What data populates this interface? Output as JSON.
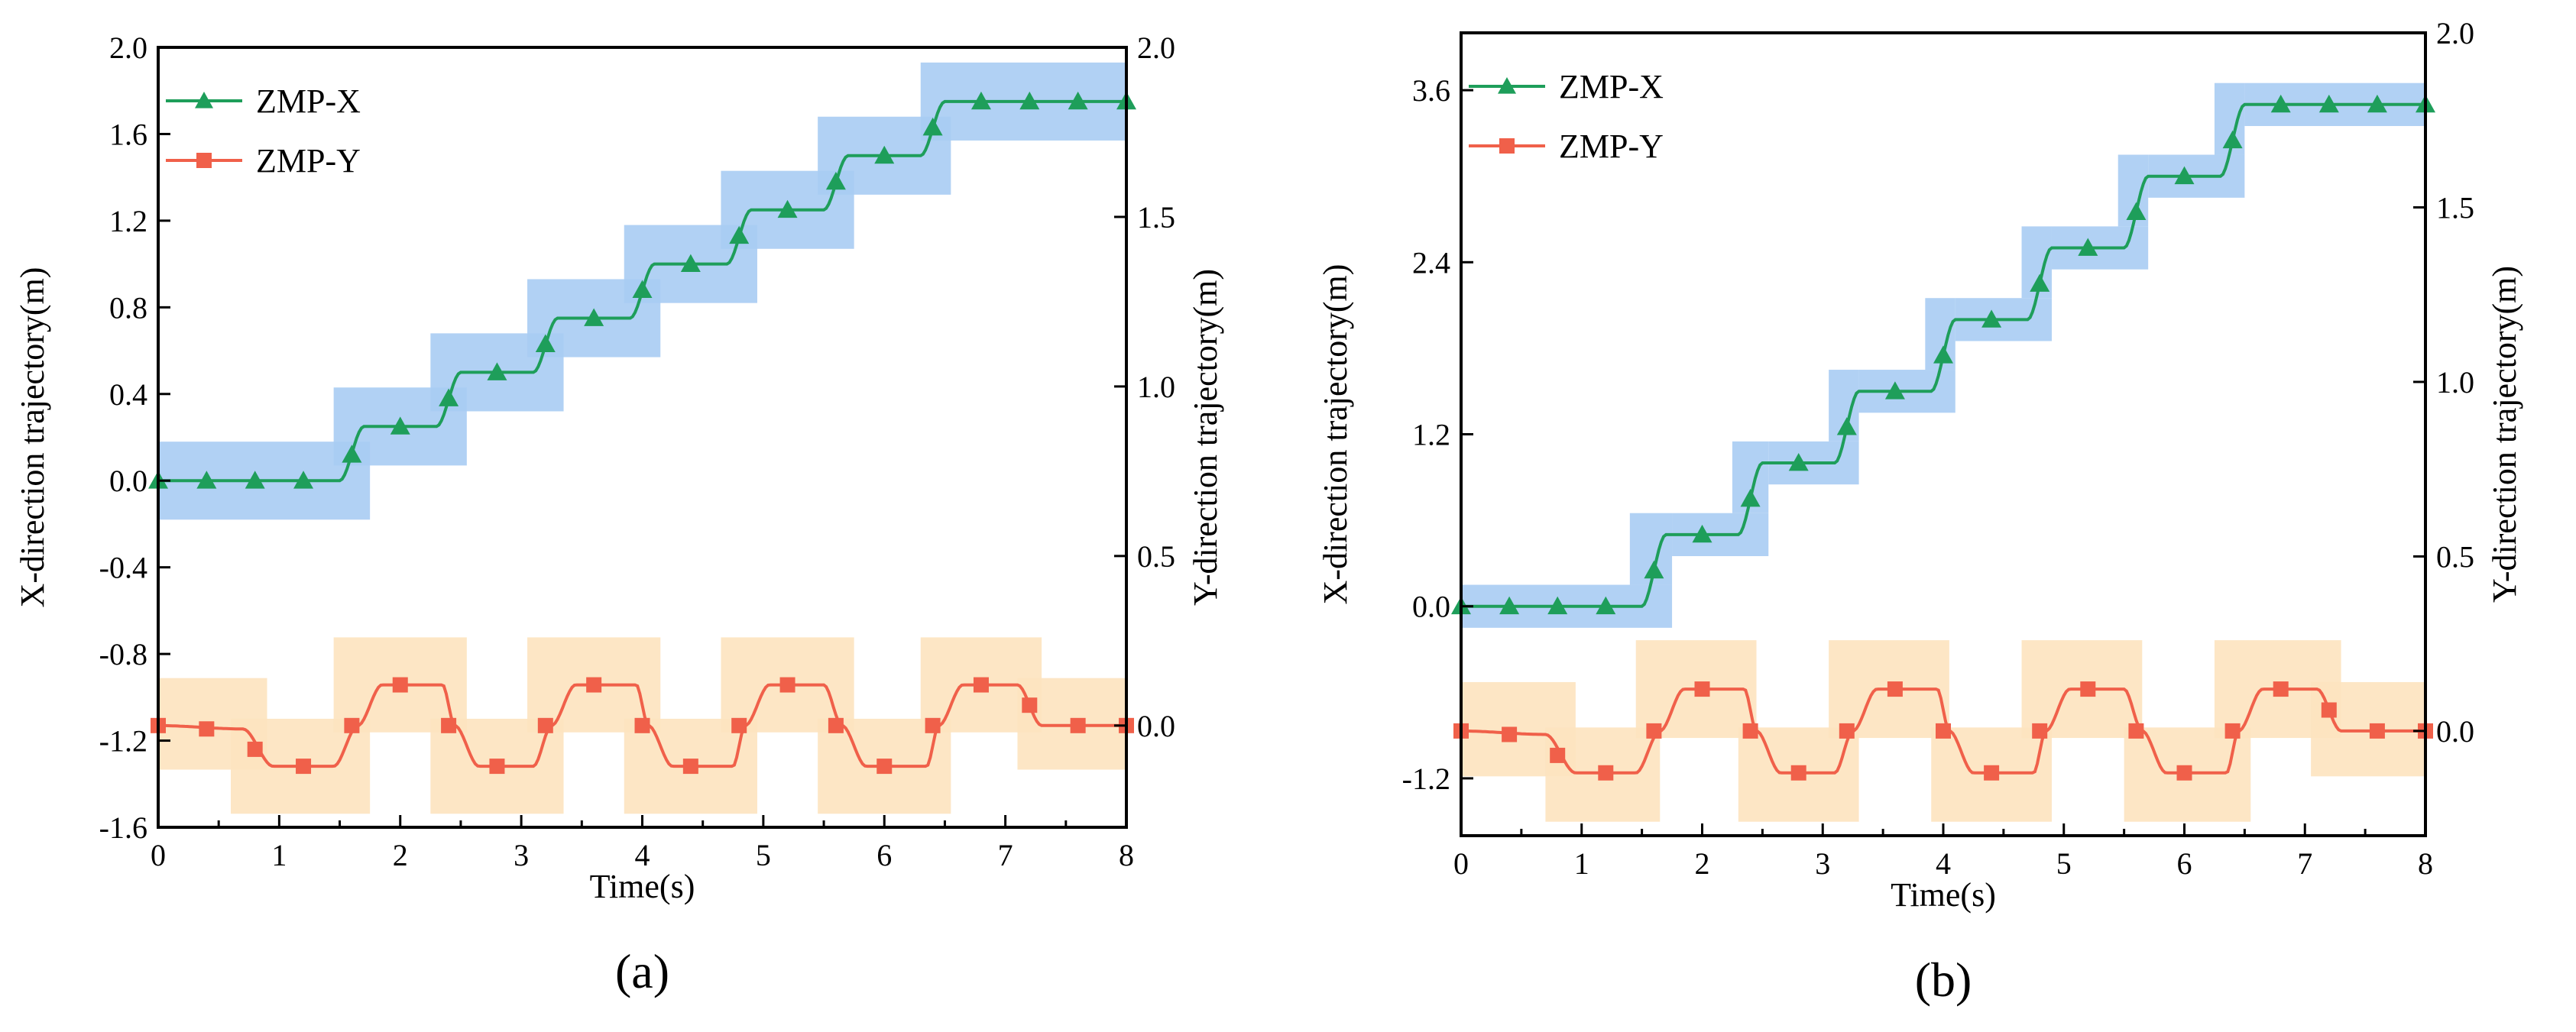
{
  "chart_data": [
    {
      "type": "line",
      "panel_label": "(a)",
      "xlabel": "Time(s)",
      "ylabel_left": "X-direction trajectory(m)",
      "ylabel_right": "Y-direction trajectory(m)",
      "xlim": [
        0,
        8
      ],
      "ylim_left": [
        -1.6,
        2.0
      ],
      "ylim_right": [
        -0.3,
        2.0
      ],
      "x_ticks": [
        "0",
        "1",
        "2",
        "3",
        "4",
        "5",
        "6",
        "7",
        "8"
      ],
      "y_left_ticks": [
        "-1.6",
        "-1.2",
        "-0.8",
        "-0.4",
        "0.0",
        "0.4",
        "0.8",
        "1.2",
        "1.6",
        "2.0"
      ],
      "y_right_ticks": [
        "0.0",
        "0.5",
        "1.0",
        "1.5",
        "2.0"
      ],
      "legend_position": "top-left",
      "legend": [
        "ZMP-X",
        "ZMP-Y"
      ],
      "series": [
        {
          "name": "ZMP-X",
          "axis": "left",
          "color": "#1e9e5a",
          "marker": "triangle",
          "x": [
            0,
            0.4,
            0.8,
            1.2,
            1.6,
            2.0,
            2.4,
            2.8,
            3.2,
            3.6,
            4.0,
            4.4,
            4.8,
            5.2,
            5.6,
            6.0,
            6.4,
            6.8,
            7.2,
            7.6,
            8.0
          ],
          "values": [
            0.0,
            0.0,
            0.0,
            0.0,
            0.12,
            0.25,
            0.38,
            0.5,
            0.63,
            0.75,
            0.88,
            1.0,
            1.13,
            1.25,
            1.38,
            1.5,
            1.63,
            1.75,
            1.75,
            1.75,
            1.75
          ]
        },
        {
          "name": "ZMP-Y",
          "axis": "right",
          "color": "#f0604a",
          "marker": "square",
          "x": [
            0,
            0.4,
            0.8,
            1.2,
            1.6,
            2.0,
            2.4,
            2.8,
            3.2,
            3.6,
            4.0,
            4.4,
            4.8,
            5.2,
            5.6,
            6.0,
            6.4,
            6.8,
            7.2,
            7.6,
            8.0
          ],
          "values": [
            0.0,
            -0.01,
            -0.07,
            -0.12,
            0.0,
            0.12,
            0.0,
            -0.12,
            0.0,
            0.12,
            0.0,
            -0.12,
            0.0,
            0.12,
            0.0,
            -0.12,
            0.0,
            0.12,
            0.06,
            0.0,
            0.0
          ]
        }
      ],
      "x_support_regions": [
        {
          "t0": 0.0,
          "t1": 1.75,
          "y0": -0.18,
          "y1": 0.18
        },
        {
          "t0": 1.45,
          "t1": 2.55,
          "y0": 0.07,
          "y1": 0.43
        },
        {
          "t0": 2.25,
          "t1": 3.35,
          "y0": 0.32,
          "y1": 0.68
        },
        {
          "t0": 3.05,
          "t1": 4.15,
          "y0": 0.57,
          "y1": 0.93
        },
        {
          "t0": 3.85,
          "t1": 4.95,
          "y0": 0.82,
          "y1": 1.18
        },
        {
          "t0": 4.65,
          "t1": 5.75,
          "y0": 1.07,
          "y1": 1.43
        },
        {
          "t0": 5.45,
          "t1": 6.55,
          "y0": 1.32,
          "y1": 1.68
        },
        {
          "t0": 6.3,
          "t1": 8.0,
          "y0": 1.57,
          "y1": 1.93
        }
      ],
      "y_support_regions": [
        {
          "t0": 0.0,
          "t1": 0.9,
          "y0": -0.13,
          "y1": 0.14
        },
        {
          "t0": 0.6,
          "t1": 1.75,
          "y0": -0.26,
          "y1": 0.02
        },
        {
          "t0": 1.45,
          "t1": 2.55,
          "y0": -0.02,
          "y1": 0.26
        },
        {
          "t0": 2.25,
          "t1": 3.35,
          "y0": -0.26,
          "y1": 0.02
        },
        {
          "t0": 3.05,
          "t1": 4.15,
          "y0": -0.02,
          "y1": 0.26
        },
        {
          "t0": 3.85,
          "t1": 4.95,
          "y0": -0.26,
          "y1": 0.02
        },
        {
          "t0": 4.65,
          "t1": 5.75,
          "y0": -0.02,
          "y1": 0.26
        },
        {
          "t0": 5.45,
          "t1": 6.55,
          "y0": -0.26,
          "y1": 0.02
        },
        {
          "t0": 6.3,
          "t1": 7.3,
          "y0": -0.02,
          "y1": 0.26
        },
        {
          "t0": 7.1,
          "t1": 8.0,
          "y0": -0.13,
          "y1": 0.14
        }
      ],
      "region_colors": {
        "x": "#a8ccf3",
        "y": "#fde3bf"
      }
    },
    {
      "type": "line",
      "panel_label": "(b)",
      "xlabel": "Time(s)",
      "ylabel_left": "X-direction trajectory(m)",
      "ylabel_right": "Y-direction trajectory(m)",
      "xlim": [
        0,
        8
      ],
      "ylim_left": [
        -1.6,
        4.0
      ],
      "ylim_right": [
        -0.3,
        2.0
      ],
      "x_ticks": [
        "0",
        "1",
        "2",
        "3",
        "4",
        "5",
        "6",
        "7",
        "8"
      ],
      "y_left_ticks": [
        "-1.2",
        "0.0",
        "1.2",
        "2.4",
        "3.6"
      ],
      "y_right_ticks": [
        "0.0",
        "0.5",
        "1.0",
        "1.5",
        "2.0"
      ],
      "legend_position": "top-left",
      "legend": [
        "ZMP-X",
        "ZMP-Y"
      ],
      "series": [
        {
          "name": "ZMP-X",
          "axis": "left",
          "color": "#1e9e5a",
          "marker": "triangle",
          "x": [
            0,
            0.4,
            0.8,
            1.2,
            1.6,
            2.0,
            2.4,
            2.8,
            3.2,
            3.6,
            4.0,
            4.4,
            4.8,
            5.2,
            5.6,
            6.0,
            6.4,
            6.8,
            7.2,
            7.6,
            8.0
          ],
          "values": [
            0.0,
            0.0,
            0.0,
            0.0,
            0.25,
            0.5,
            0.75,
            1.0,
            1.25,
            1.5,
            1.75,
            2.0,
            2.25,
            2.5,
            2.75,
            3.0,
            3.25,
            3.5,
            3.5,
            3.5,
            3.5
          ]
        },
        {
          "name": "ZMP-Y",
          "axis": "right",
          "color": "#f0604a",
          "marker": "square",
          "x": [
            0,
            0.4,
            0.8,
            1.2,
            1.6,
            2.0,
            2.4,
            2.8,
            3.2,
            3.6,
            4.0,
            4.4,
            4.8,
            5.2,
            5.6,
            6.0,
            6.4,
            6.8,
            7.2,
            7.6,
            8.0
          ],
          "values": [
            0.0,
            -0.01,
            -0.07,
            -0.12,
            0.0,
            0.12,
            0.0,
            -0.12,
            0.0,
            0.12,
            0.0,
            -0.12,
            0.0,
            0.12,
            0.0,
            -0.12,
            0.0,
            0.12,
            0.06,
            0.0,
            0.0
          ]
        }
      ],
      "x_support_regions": [
        {
          "t0": 0.0,
          "t1": 1.75,
          "y0": -0.15,
          "y1": 0.15
        },
        {
          "t0": 1.4,
          "t1": 1.75,
          "y0": 0.15,
          "y1": 0.65
        },
        {
          "t0": 1.75,
          "t1": 2.55,
          "y0": 0.35,
          "y1": 0.65
        },
        {
          "t0": 2.25,
          "t1": 2.55,
          "y0": 0.65,
          "y1": 1.15
        },
        {
          "t0": 2.55,
          "t1": 3.3,
          "y0": 0.85,
          "y1": 1.15
        },
        {
          "t0": 3.05,
          "t1": 3.3,
          "y0": 1.15,
          "y1": 1.65
        },
        {
          "t0": 3.3,
          "t1": 4.1,
          "y0": 1.35,
          "y1": 1.65
        },
        {
          "t0": 3.85,
          "t1": 4.1,
          "y0": 1.65,
          "y1": 2.15
        },
        {
          "t0": 4.1,
          "t1": 4.9,
          "y0": 1.85,
          "y1": 2.15
        },
        {
          "t0": 4.65,
          "t1": 4.9,
          "y0": 2.15,
          "y1": 2.65
        },
        {
          "t0": 4.9,
          "t1": 5.7,
          "y0": 2.35,
          "y1": 2.65
        },
        {
          "t0": 5.45,
          "t1": 5.7,
          "y0": 2.65,
          "y1": 3.15
        },
        {
          "t0": 5.7,
          "t1": 6.5,
          "y0": 2.85,
          "y1": 3.15
        },
        {
          "t0": 6.25,
          "t1": 6.5,
          "y0": 3.15,
          "y1": 3.65
        },
        {
          "t0": 6.5,
          "t1": 8.0,
          "y0": 3.35,
          "y1": 3.65
        }
      ],
      "y_support_regions": [
        {
          "t0": 0.0,
          "t1": 0.95,
          "y0": -0.13,
          "y1": 0.14
        },
        {
          "t0": 0.7,
          "t1": 1.65,
          "y0": -0.26,
          "y1": 0.01
        },
        {
          "t0": 1.45,
          "t1": 2.45,
          "y0": -0.02,
          "y1": 0.26
        },
        {
          "t0": 2.3,
          "t1": 3.3,
          "y0": -0.26,
          "y1": 0.01
        },
        {
          "t0": 3.05,
          "t1": 4.05,
          "y0": -0.02,
          "y1": 0.26
        },
        {
          "t0": 3.9,
          "t1": 4.9,
          "y0": -0.26,
          "y1": 0.01
        },
        {
          "t0": 4.65,
          "t1": 5.65,
          "y0": -0.02,
          "y1": 0.26
        },
        {
          "t0": 5.5,
          "t1": 6.55,
          "y0": -0.26,
          "y1": 0.01
        },
        {
          "t0": 6.25,
          "t1": 7.3,
          "y0": -0.02,
          "y1": 0.26
        },
        {
          "t0": 7.05,
          "t1": 8.0,
          "y0": -0.13,
          "y1": 0.14
        }
      ],
      "region_colors": {
        "x": "#a8ccf3",
        "y": "#fde3bf"
      }
    }
  ]
}
